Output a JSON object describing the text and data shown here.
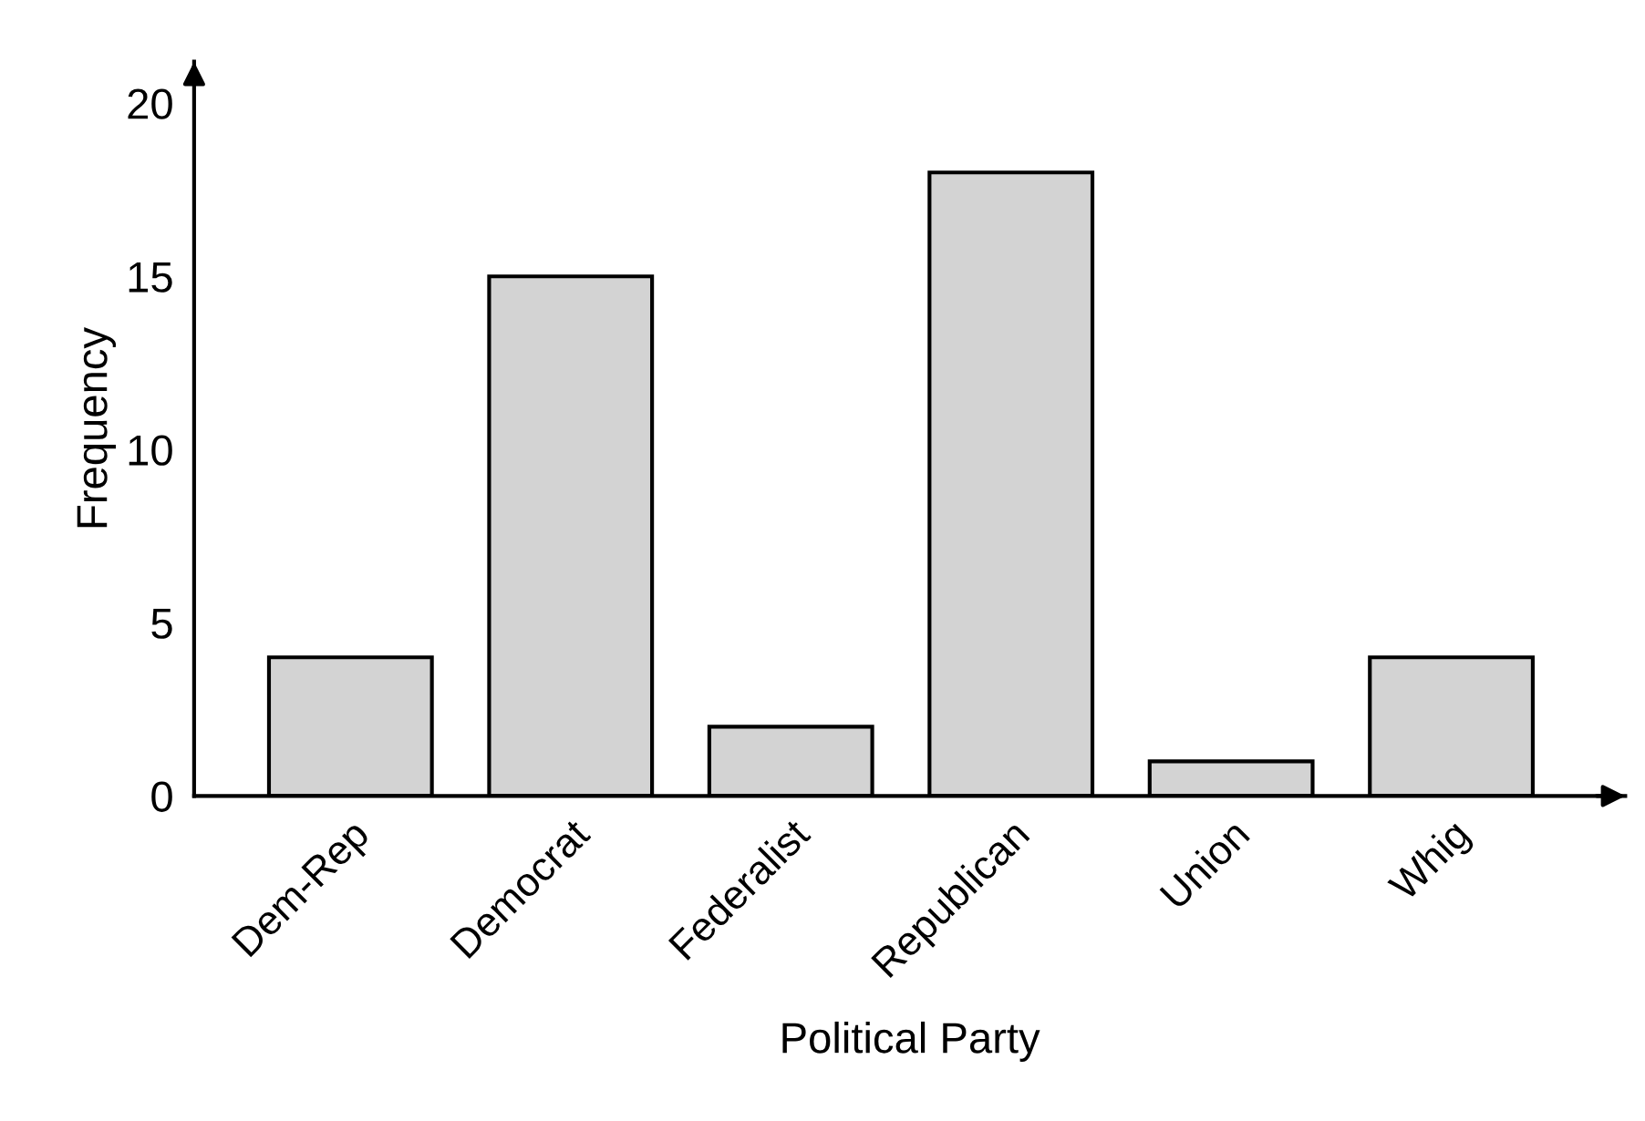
{
  "chart_data": {
    "type": "bar",
    "xlabel": "Political Party",
    "ylabel": "Frequency",
    "categories": [
      "Dem-Rep",
      "Democrat",
      "Federalist",
      "Republican",
      "Union",
      "Whig"
    ],
    "values": [
      4,
      15,
      2,
      18,
      1,
      4
    ],
    "color": "#d3d3d3",
    "ylim": [
      0,
      21.2
    ],
    "yticks": [
      0,
      5,
      10,
      15,
      20
    ],
    "grid": false,
    "legend": false
  }
}
